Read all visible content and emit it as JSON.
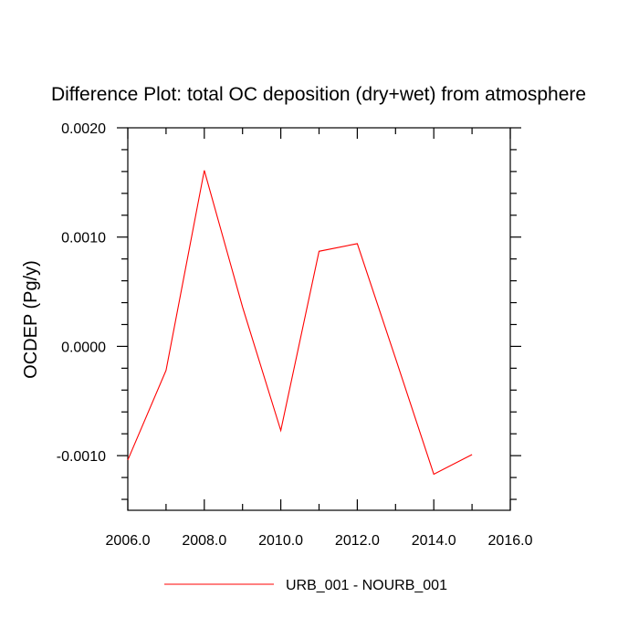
{
  "chart_data": {
    "type": "line",
    "title": "Difference Plot: total OC deposition (dry+wet) from atmosphere",
    "xlabel": "",
    "ylabel": "OCDEP  (Pg/y)",
    "xlim": [
      2006.0,
      2016.0
    ],
    "ylim": [
      -0.0015,
      0.002
    ],
    "xticks": [
      2006.0,
      2008.0,
      2010.0,
      2012.0,
      2014.0,
      2016.0
    ],
    "xtick_labels": [
      "2006.0",
      "2008.0",
      "2010.0",
      "2012.0",
      "2014.0",
      "2016.0"
    ],
    "xminor": [
      2007.0,
      2009.0,
      2011.0,
      2013.0,
      2015.0
    ],
    "yticks": [
      -0.001,
      0.0,
      0.001,
      0.002
    ],
    "ytick_labels": [
      "-0.0010",
      "0.0000",
      "0.0010",
      "0.0020"
    ],
    "yminor_step": 0.0002,
    "grid": false,
    "legend_position": "bottom-center",
    "series": [
      {
        "name": "URB_001 - NOURB_001",
        "color": "#ff0000",
        "x": [
          2006,
          2007,
          2008,
          2009,
          2010,
          2011,
          2012,
          2013,
          2014,
          2015
        ],
        "y": [
          -0.00104,
          -0.00022,
          0.00161,
          0.00036,
          -0.00077,
          0.00087,
          0.00094,
          -0.00011,
          -0.00117,
          -0.00099
        ]
      }
    ]
  }
}
